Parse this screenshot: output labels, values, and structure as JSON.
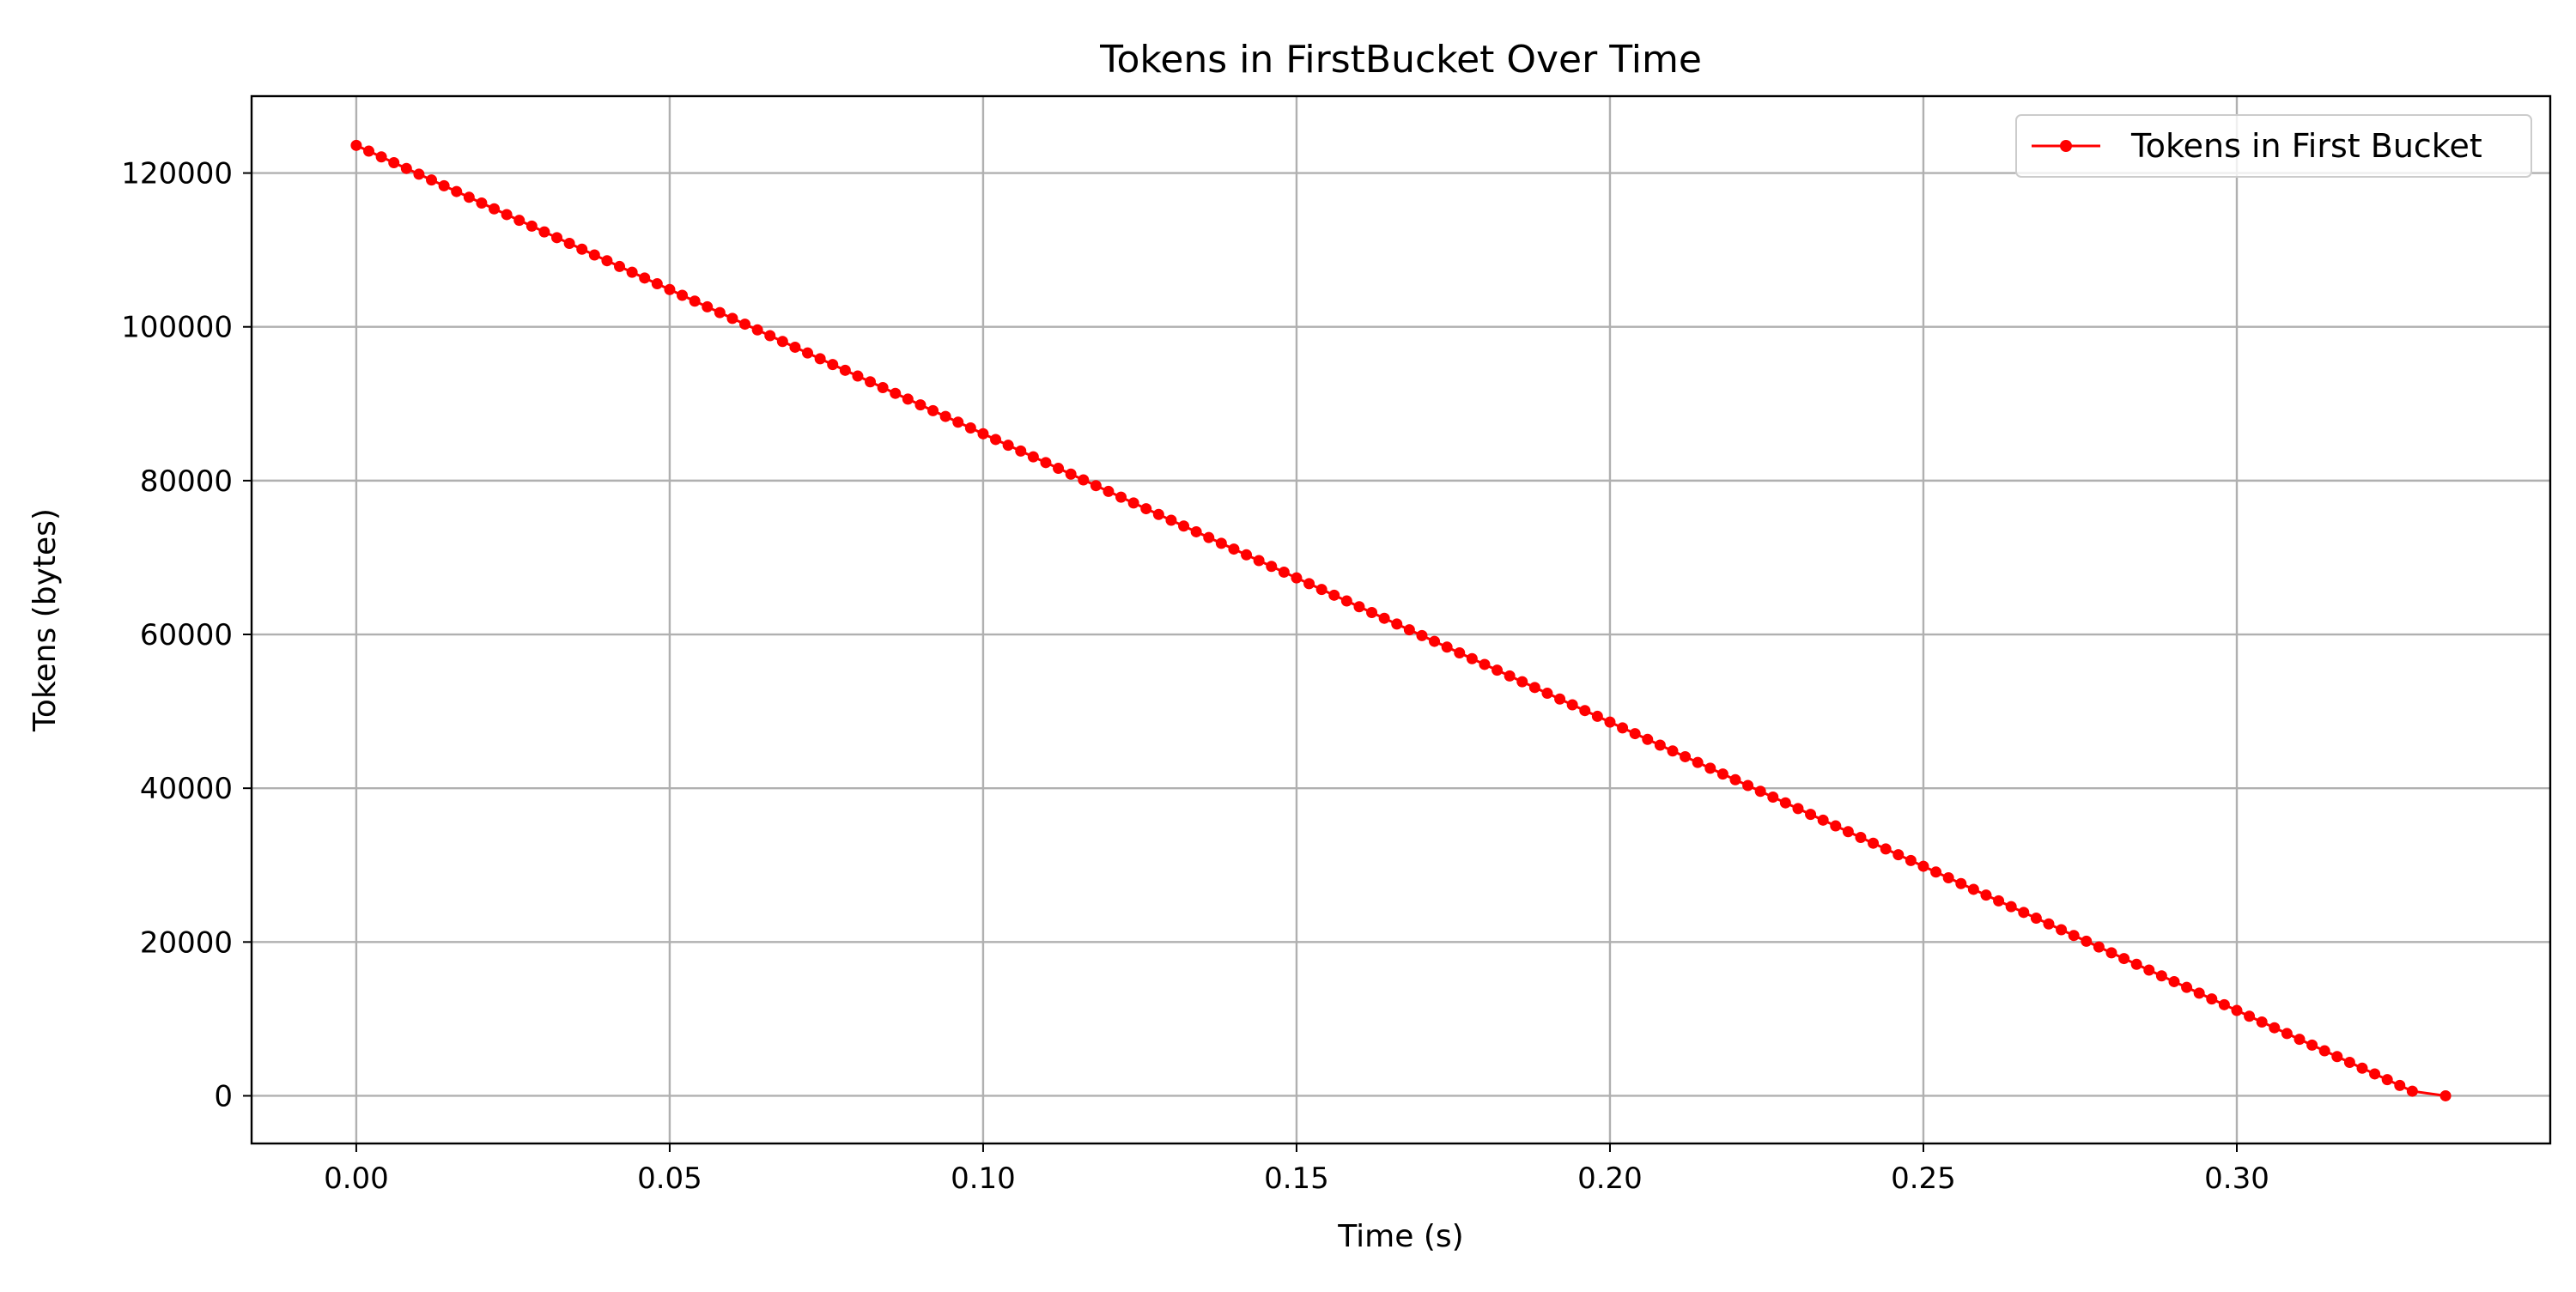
{
  "chart_data": {
    "type": "line",
    "title": "Tokens in FirstBucket Over Time",
    "xlabel": "Time (s)",
    "ylabel": "Tokens (bytes)",
    "xlim": [
      -0.0167,
      0.35
    ],
    "ylim": [
      -6200,
      130000
    ],
    "xticks": [
      0.0,
      0.05,
      0.1,
      0.15,
      0.2,
      0.25,
      0.3
    ],
    "xtick_labels": [
      "0.00",
      "0.05",
      "0.10",
      "0.15",
      "0.20",
      "0.25",
      "0.30"
    ],
    "yticks": [
      0,
      20000,
      40000,
      60000,
      80000,
      100000,
      120000
    ],
    "ytick_labels": [
      "0",
      "20000",
      "40000",
      "60000",
      "80000",
      "100000",
      "120000"
    ],
    "grid": true,
    "legend_position": "top-right",
    "series": [
      {
        "name": "Tokens in First Bucket",
        "color": "#ff0000",
        "marker": "circle",
        "x_start": 0.0,
        "x_step": 0.002,
        "points_count": 165,
        "y_start": 123600,
        "y_slope_per_second": -375000,
        "final_point": [
          0.3333,
          0
        ]
      }
    ]
  }
}
